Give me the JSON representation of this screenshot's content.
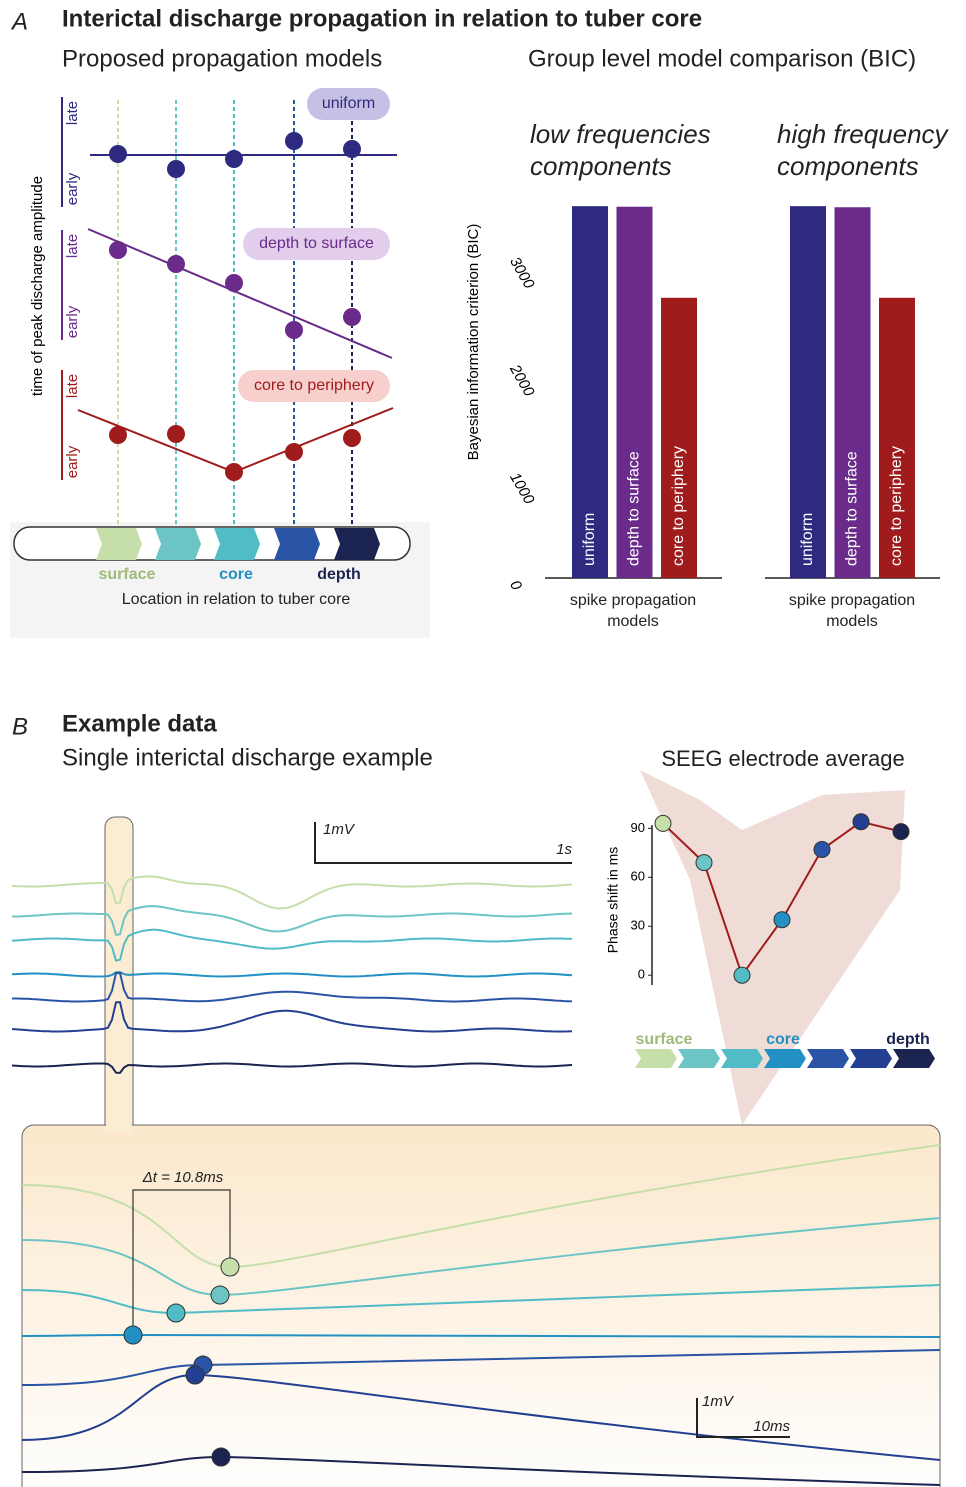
{
  "panel_a": {
    "letter": "A",
    "title": "Interictal discharge propagation in relation to tuber core",
    "models": {
      "title": "Proposed propagation models",
      "y_label": "time of peak discharge amplitude",
      "late": "late",
      "early": "early",
      "names": [
        "uniform",
        "depth to surface",
        "core to periphery"
      ],
      "locations": [
        "surface",
        "core",
        "depth"
      ],
      "x_label": "Location in relation to tuber core"
    },
    "comparison": {
      "type": "bar",
      "title": "Group level model comparison (BIC)",
      "y_label": "Bayesian information criterion (BIC)",
      "ylim": [
        0,
        3600
      ],
      "yticks": [
        0,
        1000,
        2000,
        3000
      ],
      "x_label": "spike propagation models",
      "categories": [
        "uniform",
        "depth to surface",
        "core to periphery"
      ],
      "colors": [
        "#2e2a80",
        "#6a2b8a",
        "#a01c1c"
      ],
      "groups": [
        {
          "name": "low frequencies components",
          "values": [
            3450,
            3445,
            2600
          ]
        },
        {
          "name": "high frequency components",
          "values": [
            3450,
            3440,
            2600
          ]
        }
      ]
    }
  },
  "panel_b": {
    "letter": "B",
    "title": "Example data",
    "subtitle": "Single interictal discharge example",
    "scale_1": {
      "amplitude": "1mV",
      "time": "1s"
    },
    "scale_2": {
      "amplitude": "1mV",
      "time": "10ms"
    },
    "delta": "Δt = 10.8ms",
    "average": {
      "type": "line",
      "title": "SEEG electrode average",
      "y_label": "Phase shift in ms",
      "ylim": [
        -6,
        100
      ],
      "yticks": [
        0,
        30,
        60,
        90
      ],
      "values": [
        93,
        69,
        0,
        34,
        77,
        94,
        88
      ],
      "color": "#a01c1c",
      "point_colors": [
        "#c6dfaa",
        "#6cc5c4",
        "#52bcc6",
        "#2390c3",
        "#2a54a6",
        "#233f92",
        "#1b2350"
      ]
    },
    "locations": [
      "surface",
      "core",
      "depth"
    ]
  }
}
